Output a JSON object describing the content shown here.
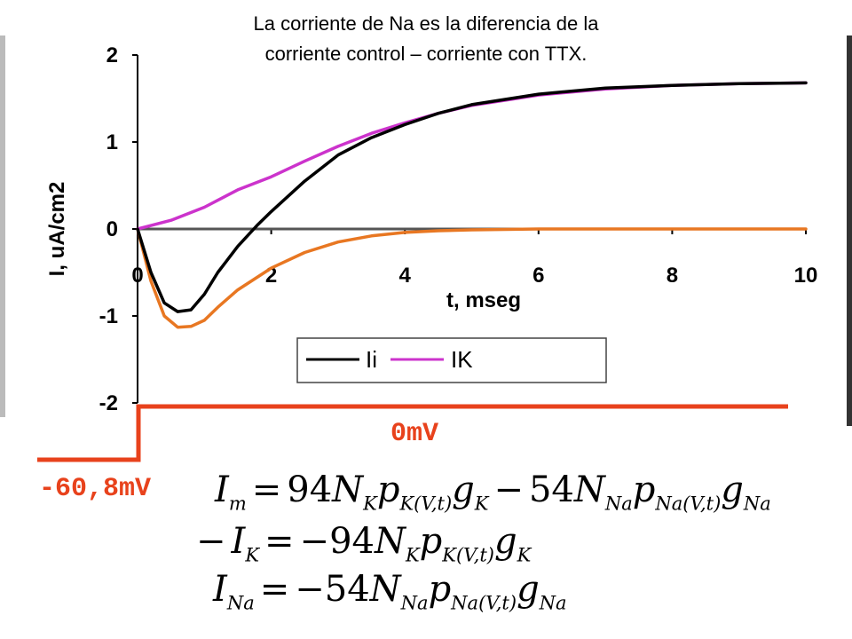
{
  "title": {
    "line1": "La corriente de Na es la diferencia de la",
    "line2": "corriente control – corriente con TTX."
  },
  "chart_data": {
    "type": "line",
    "xlabel": "t, mseg",
    "ylabel": "I, uA/cm2",
    "xlim": [
      0,
      10
    ],
    "ylim": [
      -2,
      2
    ],
    "xticks": [
      "0",
      "2",
      "4",
      "6",
      "8",
      "10"
    ],
    "yticks": [
      "2",
      "1",
      "0",
      "-1",
      "-2"
    ],
    "legend_position": "bottom-center",
    "series": [
      {
        "name": "Ii",
        "color": "#000000",
        "x": [
          0,
          0.2,
          0.4,
          0.6,
          0.8,
          1.0,
          1.2,
          1.5,
          1.8,
          2.0,
          2.5,
          3.0,
          3.5,
          4.0,
          4.5,
          5.0,
          6.0,
          7.0,
          8.0,
          9.0,
          10.0
        ],
        "y": [
          0,
          -0.5,
          -0.85,
          -0.95,
          -0.93,
          -0.75,
          -0.5,
          -0.2,
          0.05,
          0.2,
          0.55,
          0.85,
          1.05,
          1.2,
          1.33,
          1.43,
          1.55,
          1.62,
          1.65,
          1.67,
          1.68
        ]
      },
      {
        "name": "IK",
        "color": "#cc33cc",
        "x": [
          0,
          0.5,
          1.0,
          1.5,
          2.0,
          2.5,
          3.0,
          3.5,
          4.0,
          4.5,
          5.0,
          6.0,
          7.0,
          8.0,
          9.0,
          10.0
        ],
        "y": [
          0,
          0.1,
          0.25,
          0.45,
          0.6,
          0.78,
          0.95,
          1.1,
          1.22,
          1.33,
          1.42,
          1.54,
          1.61,
          1.65,
          1.67,
          1.68
        ]
      },
      {
        "name": "",
        "color": "#e87722",
        "x": [
          0,
          0.2,
          0.4,
          0.6,
          0.8,
          1.0,
          1.2,
          1.5,
          2.0,
          2.5,
          3.0,
          3.5,
          4.0,
          4.5,
          5.0,
          6.0,
          8.0,
          10.0
        ],
        "y": [
          0,
          -0.6,
          -1.0,
          -1.13,
          -1.12,
          -1.05,
          -0.9,
          -0.7,
          -0.45,
          -0.27,
          -0.15,
          -0.08,
          -0.04,
          -0.02,
          -0.01,
          0,
          0,
          0
        ]
      },
      {
        "name": "",
        "color": "#555555",
        "x": [
          0,
          10
        ],
        "y": [
          0,
          0
        ]
      }
    ]
  },
  "voltage": {
    "label_high": "0mV",
    "label_low": "-60,8mV",
    "color": "#e8421c"
  },
  "equations": {
    "eq1": {
      "lhs": "I",
      "lhs_sub": "m",
      "op": "=",
      "c1": "94",
      "N1": "N",
      "N1_sub": "K",
      "p1": "p",
      "p1_sub": "K(V,t)",
      "g1": "g",
      "g1_sub": "K",
      "op2": "−",
      "c2": "54",
      "N2": "N",
      "N2_sub": "Na",
      "p2": "p",
      "p2_sub": "Na(V,t)",
      "g2": "g",
      "g2_sub": "Na"
    },
    "eq2": {
      "lhs_sign": "−",
      "lhs": "I",
      "lhs_sub": "K",
      "op": "=",
      "c1": "−94",
      "N1": "N",
      "N1_sub": "K",
      "p1": "p",
      "p1_sub": "K(V,t)",
      "g1": "g",
      "g1_sub": "K"
    },
    "eq3": {
      "lhs": "I",
      "lhs_sub": "Na",
      "op": "=",
      "c1": "−54",
      "N1": "N",
      "N1_sub": "Na",
      "p1": "p",
      "p1_sub": "Na(V,t)",
      "g1": "g",
      "g1_sub": "Na"
    }
  }
}
